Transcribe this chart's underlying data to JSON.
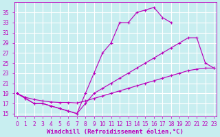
{
  "bg_color": "#c8eef0",
  "grid_color": "#ffffff",
  "line_color": "#bb00bb",
  "line1_x": [
    0,
    1,
    2,
    3,
    4,
    5,
    6,
    7,
    8,
    9,
    10,
    11,
    12,
    13,
    14,
    15,
    16,
    17,
    18
  ],
  "line1_y": [
    19,
    18,
    17,
    17,
    16.5,
    16,
    15.5,
    15,
    19,
    23,
    27,
    29,
    33,
    33,
    35,
    35.5,
    36,
    34,
    33
  ],
  "line2_x": [
    0,
    1,
    2,
    3,
    4,
    5,
    6,
    7,
    8,
    9,
    10,
    11,
    12,
    13,
    14,
    15,
    16,
    17,
    18,
    19,
    20,
    21,
    22,
    23
  ],
  "line2_y": [
    19,
    18,
    17,
    17,
    16.5,
    16,
    15.5,
    15,
    17,
    19,
    20,
    21,
    22,
    23,
    24,
    25,
    26,
    27,
    28,
    29,
    30,
    30,
    25,
    24
  ],
  "line3_x": [
    0,
    1,
    2,
    3,
    4,
    5,
    6,
    7,
    8,
    9,
    10,
    11,
    12,
    13,
    14,
    15,
    16,
    17,
    18,
    19,
    20,
    21,
    22,
    23
  ],
  "line3_y": [
    19,
    18.2,
    17.8,
    17.5,
    17.3,
    17.2,
    17.2,
    17.1,
    17.5,
    18,
    18.5,
    19,
    19.5,
    20,
    20.5,
    21,
    21.5,
    22,
    22.5,
    23,
    23.5,
    23.8,
    24,
    24
  ],
  "xlabel": "Windchill (Refroidissement éolien,°C)",
  "xlim": [
    -0.3,
    23.3
  ],
  "ylim": [
    14.5,
    37
  ],
  "xticks": [
    0,
    1,
    2,
    3,
    4,
    5,
    6,
    7,
    8,
    9,
    10,
    11,
    12,
    13,
    14,
    15,
    16,
    17,
    18,
    19,
    20,
    21,
    22,
    23
  ],
  "yticks": [
    15,
    17,
    19,
    21,
    23,
    25,
    27,
    29,
    31,
    33,
    35
  ],
  "xlabel_fontsize": 6.5,
  "tick_fontsize": 5.5,
  "lw": 0.85,
  "ms": 2.5
}
